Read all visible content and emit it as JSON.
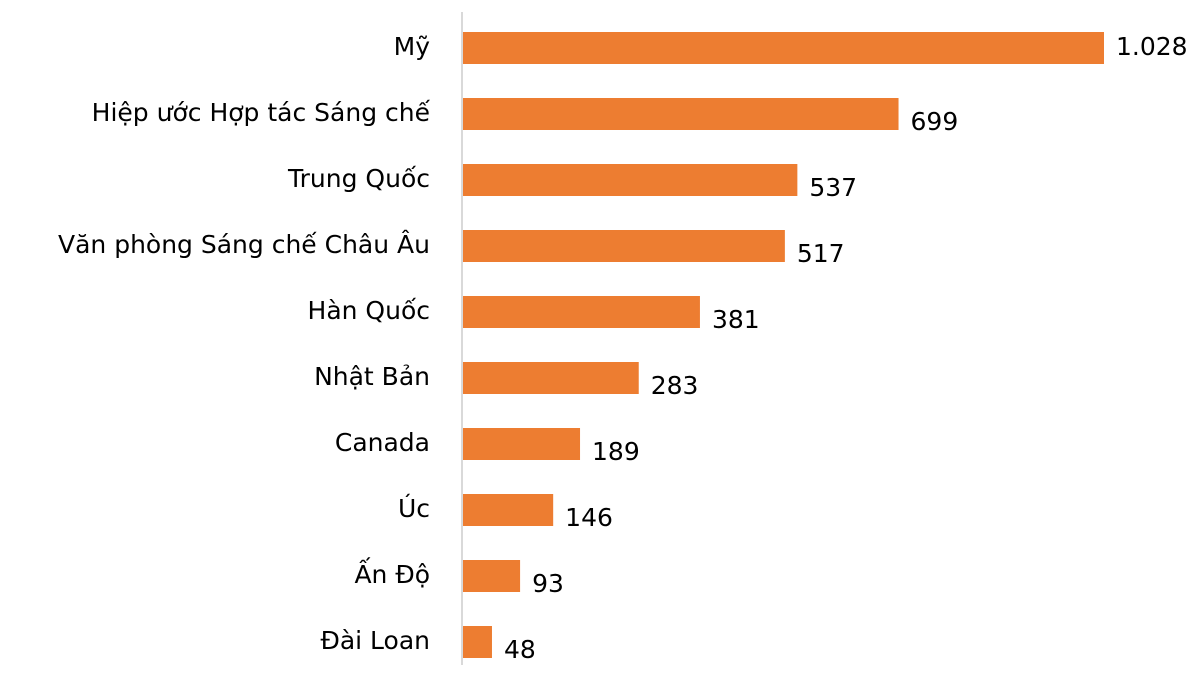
{
  "chart_data": {
    "type": "bar",
    "orientation": "horizontal",
    "categories": [
      "Mỹ",
      "Hiệp ước Hợp tác Sáng chế",
      "Trung Quốc",
      "Văn phòng Sáng chế Châu Âu",
      "Hàn Quốc",
      "Nhật Bản",
      "Canada",
      "Úc",
      "Ấn Độ",
      "Đài Loan"
    ],
    "values": [
      1028,
      699,
      537,
      517,
      381,
      283,
      189,
      146,
      93,
      48
    ],
    "value_labels": [
      "1.028",
      "699",
      "537",
      "517",
      "381",
      "283",
      "189",
      "146",
      "93",
      "48"
    ],
    "color": "#ed7d31"
  }
}
